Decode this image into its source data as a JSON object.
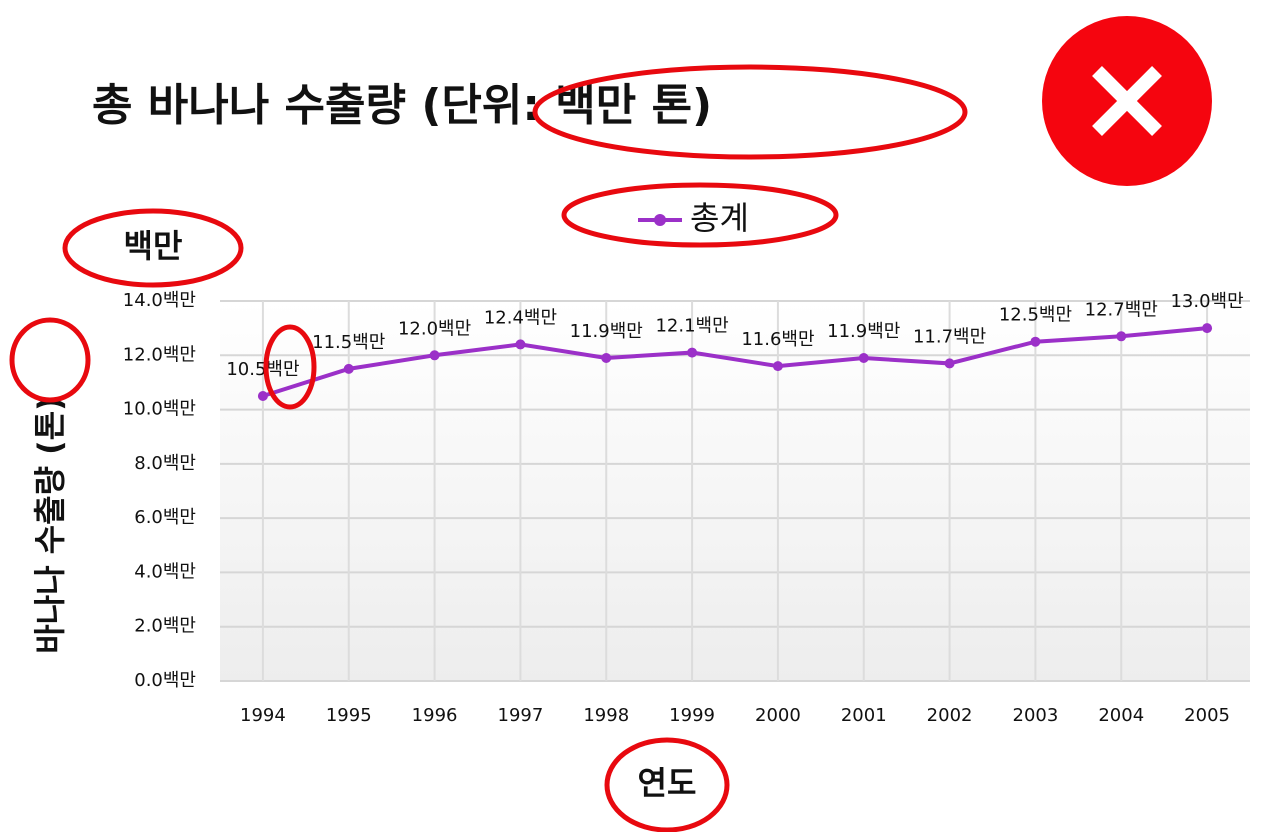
{
  "chart_data": {
    "type": "line",
    "title": "총 바나나 수출량 (단위: 백만 톤)",
    "unit_label": "백만",
    "ylabel": "바나나 수출량 (톤)",
    "xlabel": "연도",
    "categories": [
      "1994",
      "1995",
      "1996",
      "1997",
      "1998",
      "1999",
      "2000",
      "2001",
      "2002",
      "2003",
      "2004",
      "2005"
    ],
    "series": [
      {
        "name": "총계",
        "color": "#9b30c8",
        "values": [
          10.5,
          11.5,
          12.0,
          12.4,
          11.9,
          12.1,
          11.6,
          11.9,
          11.7,
          12.5,
          12.7,
          13.0
        ],
        "value_labels": [
          "10.5백만",
          "11.5백만",
          "12.0백만",
          "12.4백만",
          "11.9백만",
          "12.1백만",
          "11.6백만",
          "11.9백만",
          "11.7백만",
          "12.5백만",
          "12.7백만",
          "13.0백만"
        ]
      }
    ],
    "ylim": [
      0,
      14
    ],
    "yticks": [
      {
        "value": 0,
        "label": "0.0백만"
      },
      {
        "value": 2,
        "label": "2.0백만"
      },
      {
        "value": 4,
        "label": "4.0백만"
      },
      {
        "value": 6,
        "label": "6.0백만"
      },
      {
        "value": 8,
        "label": "8.0백만"
      },
      {
        "value": 10,
        "label": "10.0백만"
      },
      {
        "value": 12,
        "label": "12.0백만"
      },
      {
        "value": 14,
        "label": "14.0백만"
      }
    ],
    "grid": true
  }
}
